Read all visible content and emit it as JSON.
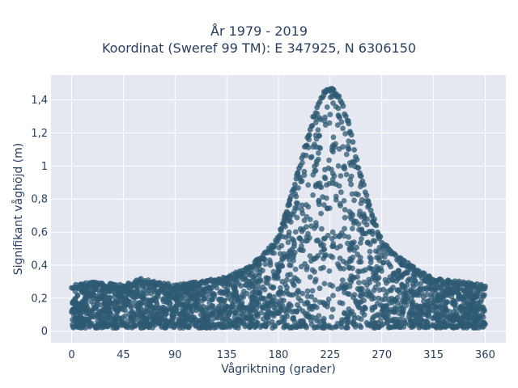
{
  "title_line1": "År 1979 - 2019",
  "title_line2": "Koordinat (Sweref 99 TM): E 347925, N 6306150",
  "chart_data": {
    "type": "scatter",
    "xlabel": "Vågriktning (grader)",
    "ylabel": "Signifikant våghöjd (m)",
    "xlim": [
      -18,
      378
    ],
    "ylim": [
      -0.07,
      1.55
    ],
    "xticks": [
      0,
      45,
      90,
      135,
      180,
      225,
      270,
      315,
      360
    ],
    "xtick_labels": [
      "0",
      "45",
      "90",
      "135",
      "180",
      "225",
      "270",
      "315",
      "360"
    ],
    "yticks": [
      0,
      0.2,
      0.4,
      0.6,
      0.8,
      1,
      1.2,
      1.4
    ],
    "ytick_labels": [
      "0",
      "0,2",
      "0,4",
      "0,6",
      "0,8",
      "1",
      "1,2",
      "1,4"
    ],
    "grid": true,
    "colors": {
      "marker": "#2e5a73",
      "plot_bg": "#e5e8f0",
      "grid": "#ffffff",
      "text": "#2a3f5f"
    },
    "envelope": {
      "description": "upper envelope of the point cloud (direction in degrees, max wave height in m)",
      "x": [
        0,
        20,
        45,
        60,
        90,
        110,
        135,
        150,
        165,
        180,
        190,
        200,
        210,
        218,
        225,
        232,
        240,
        250,
        260,
        270,
        285,
        300,
        315,
        340,
        360
      ],
      "y_max": [
        0.28,
        0.3,
        0.28,
        0.32,
        0.28,
        0.3,
        0.33,
        0.38,
        0.45,
        0.58,
        0.8,
        1.05,
        1.3,
        1.44,
        1.49,
        1.44,
        1.3,
        1.0,
        0.75,
        0.55,
        0.45,
        0.38,
        0.32,
        0.3,
        0.28
      ],
      "y_min": 0.02
    }
  }
}
